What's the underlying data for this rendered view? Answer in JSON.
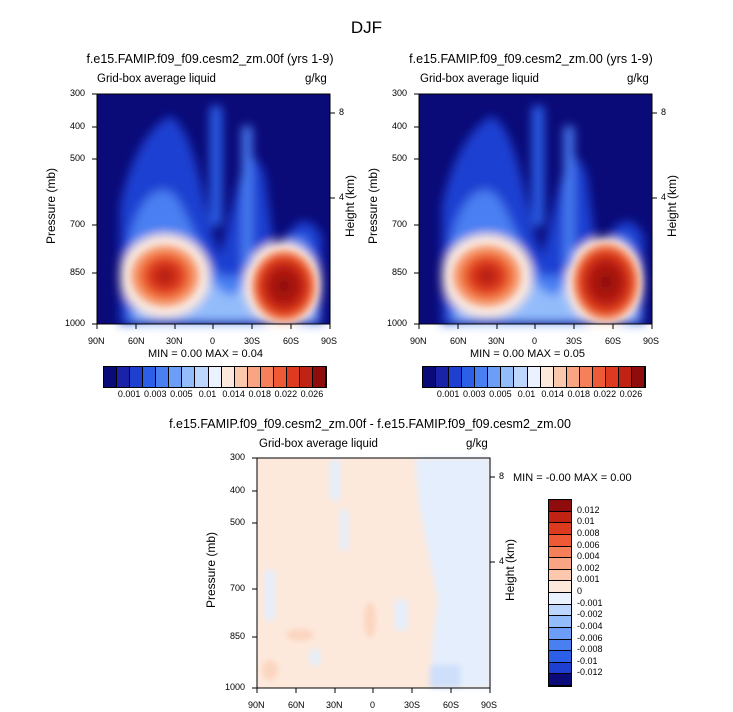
{
  "page_title": "DJF",
  "panels": [
    {
      "title": "f.e15.FAMIP.f09_f09.cesm2_zm.00f (yrs 1-9)",
      "subtitle_left": "Grid-box average liquid",
      "subtitle_right": "g/kg",
      "min_max": "MIN =   0.00  MAX =  0.04"
    },
    {
      "title": "f.e15.FAMIP.f09_f09.cesm2_zm.00 (yrs 1-9)",
      "subtitle_left": "Grid-box average liquid",
      "subtitle_right": "g/kg",
      "min_max": "MIN =   0.00  MAX =  0.05"
    },
    {
      "title": "f.e15.FAMIP.f09_f09.cesm2_zm.00f - f.e15.FAMIP.f09_f09.cesm2_zm.00",
      "subtitle_left": "Grid-box average liquid",
      "subtitle_right": "g/kg",
      "min_max": "MIN =  -0.00  MAX =   0.00"
    }
  ],
  "axis": {
    "ylabel_left": "Pressure (mb)",
    "ylabel_right": "Height (km)"
  },
  "chart_data": [
    {
      "type": "heatmap",
      "title": "f.e15.FAMIP.f09_f09.cesm2_zm.00f (yrs 1-9)",
      "xlabel": "",
      "ylabel": "Pressure (mb)",
      "y2label": "Height (km)",
      "x_ticks": [
        "90N",
        "60N",
        "30N",
        "0",
        "30S",
        "60S",
        "90S"
      ],
      "y_ticks": [
        "300",
        "400",
        "500",
        "700",
        "850",
        "1000"
      ],
      "y_scale": "log",
      "y2_ticks": [
        "8",
        "4"
      ],
      "ylim": [
        1000,
        300
      ],
      "min": 0.0,
      "max": 0.04,
      "features": [
        {
          "lat": 45,
          "p": 830,
          "value": 0.024
        },
        {
          "lat": -55,
          "p": 870,
          "value": 0.026
        }
      ]
    },
    {
      "type": "heatmap",
      "title": "f.e15.FAMIP.f09_f09.cesm2_zm.00 (yrs 1-9)",
      "xlabel": "",
      "ylabel": "Pressure (mb)",
      "y2label": "Height (km)",
      "x_ticks": [
        "90N",
        "60N",
        "30N",
        "0",
        "30S",
        "60S",
        "90S"
      ],
      "y_ticks": [
        "300",
        "400",
        "500",
        "700",
        "850",
        "1000"
      ],
      "y_scale": "log",
      "y2_ticks": [
        "8",
        "4"
      ],
      "ylim": [
        1000,
        300
      ],
      "min": 0.0,
      "max": 0.05,
      "features": [
        {
          "lat": 45,
          "p": 830,
          "value": 0.024
        },
        {
          "lat": -55,
          "p": 860,
          "value": 0.026
        }
      ]
    },
    {
      "type": "heatmap",
      "title": "f.e15.FAMIP.f09_f09.cesm2_zm.00f - f.e15.FAMIP.f09_f09.cesm2_zm.00",
      "xlabel": "",
      "ylabel": "Pressure (mb)",
      "y2label": "Height (km)",
      "x_ticks": [
        "90N",
        "60N",
        "30N",
        "0",
        "30S",
        "60S",
        "90S"
      ],
      "y_ticks": [
        "300",
        "400",
        "500",
        "700",
        "850",
        "1000"
      ],
      "y_scale": "log",
      "y2_ticks": [
        "8",
        "4"
      ],
      "ylim": [
        1000,
        300
      ],
      "min": -0.0,
      "max": 0.0
    }
  ],
  "colorbar_abs": {
    "labels": [
      "0.001",
      "0.003",
      "0.005",
      "0.01",
      "0.014",
      "0.018",
      "0.022",
      "0.026"
    ],
    "colors": [
      "#0a0a78",
      "#1a23a8",
      "#1f3fd1",
      "#2c5ee8",
      "#4a7ff2",
      "#6c9ef7",
      "#93bcfb",
      "#bcd6fd",
      "#e9f2fe",
      "#fde9dc",
      "#fbc8ad",
      "#f9a583",
      "#f5805a",
      "#ee5a36",
      "#de3a1f",
      "#c02214",
      "#8e0d0c"
    ]
  },
  "colorbar_diff": {
    "labels": [
      "0.012",
      "0.01",
      "0.008",
      "0.006",
      "0.004",
      "0.002",
      "0.001",
      "0",
      "-0.001",
      "-0.002",
      "-0.004",
      "-0.006",
      "-0.008",
      "-0.01",
      "-0.012"
    ],
    "colors": [
      "#8e0d0c",
      "#c02214",
      "#de3a1f",
      "#ee5a36",
      "#f5805a",
      "#f9a583",
      "#fbc8ad",
      "#fde9dc",
      "#e9f2fe",
      "#bcd6fd",
      "#93bcfb",
      "#6c9ef7",
      "#4a7ff2",
      "#2c5ee8",
      "#1f3fd1",
      "#0a0a78"
    ]
  }
}
